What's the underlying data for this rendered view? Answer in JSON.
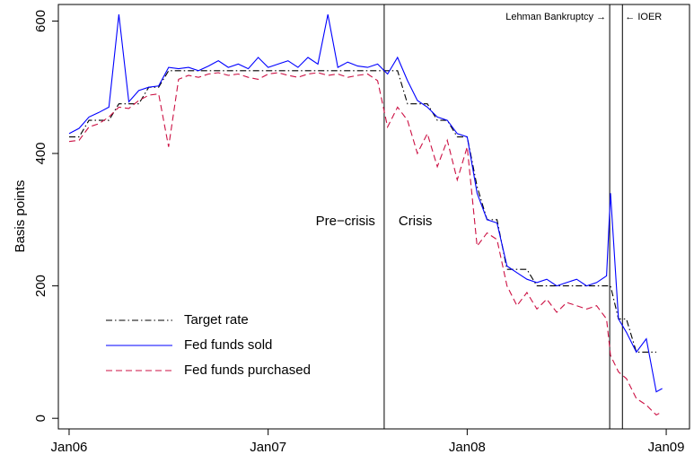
{
  "chart_data": {
    "type": "line",
    "y_label": "Basis points",
    "xlim": [
      2005.946,
      2009.117
    ],
    "ylim": [
      -16,
      625
    ],
    "xticks": [
      {
        "value": 2006,
        "label": "Jan06"
      },
      {
        "value": 2007,
        "label": "Jan07"
      },
      {
        "value": 2008,
        "label": "Jan08"
      },
      {
        "value": 2009,
        "label": "Jan09"
      }
    ],
    "yticks": [
      0,
      200,
      400,
      600
    ],
    "grid": false,
    "legend": "bottom-left",
    "x": [
      2006.0,
      2006.05,
      2006.1,
      2006.15,
      2006.2,
      2006.25,
      2006.3,
      2006.35,
      2006.4,
      2006.45,
      2006.5,
      2006.55,
      2006.6,
      2006.65,
      2006.7,
      2006.75,
      2006.8,
      2006.85,
      2006.9,
      2006.95,
      2007.0,
      2007.05,
      2007.1,
      2007.15,
      2007.2,
      2007.25,
      2007.3,
      2007.35,
      2007.4,
      2007.45,
      2007.5,
      2007.55,
      2007.6,
      2007.65,
      2007.7,
      2007.75,
      2007.8,
      2007.85,
      2007.9,
      2007.95,
      2008.0,
      2008.05,
      2008.1,
      2008.15,
      2008.2,
      2008.25,
      2008.3,
      2008.35,
      2008.4,
      2008.45,
      2008.5,
      2008.55,
      2008.6,
      2008.65,
      2008.7,
      2008.72,
      2008.76,
      2008.8,
      2008.85,
      2008.9,
      2008.95,
      2008.98
    ],
    "series": [
      {
        "name": "Target rate",
        "color": "#000000",
        "linestyle": "dashdot",
        "values": [
          425,
          425,
          450,
          450,
          450,
          475,
          475,
          475,
          500,
          500,
          525,
          525,
          525,
          525,
          525,
          525,
          525,
          525,
          525,
          525,
          525,
          525,
          525,
          525,
          525,
          525,
          525,
          525,
          525,
          525,
          525,
          525,
          525,
          525,
          475,
          475,
          475,
          450,
          450,
          425,
          425,
          350,
          300,
          300,
          225,
          225,
          225,
          200,
          200,
          200,
          200,
          200,
          200,
          200,
          200,
          200,
          150,
          150,
          100,
          100,
          100,
          null
        ]
      },
      {
        "name": "Fed funds sold",
        "color": "#0000ff",
        "linestyle": "solid",
        "values": [
          430,
          438,
          455,
          462,
          470,
          610,
          478,
          495,
          500,
          502,
          530,
          528,
          530,
          525,
          532,
          540,
          530,
          535,
          528,
          545,
          530,
          535,
          540,
          530,
          545,
          535,
          610,
          530,
          538,
          532,
          530,
          535,
          520,
          545,
          510,
          480,
          470,
          455,
          450,
          430,
          425,
          340,
          300,
          295,
          230,
          220,
          210,
          205,
          210,
          200,
          205,
          210,
          200,
          205,
          215,
          340,
          150,
          130,
          100,
          120,
          40,
          45
        ]
      },
      {
        "name": "Fed funds purchased",
        "color": "#cc1144",
        "linestyle": "dashed",
        "values": [
          418,
          420,
          440,
          445,
          455,
          470,
          468,
          480,
          488,
          490,
          410,
          512,
          518,
          515,
          520,
          522,
          518,
          520,
          515,
          512,
          520,
          522,
          518,
          515,
          520,
          522,
          518,
          520,
          515,
          518,
          520,
          510,
          440,
          470,
          450,
          400,
          430,
          380,
          420,
          360,
          410,
          260,
          280,
          270,
          200,
          170,
          190,
          165,
          180,
          160,
          175,
          170,
          165,
          170,
          150,
          95,
          70,
          60,
          30,
          20,
          5,
          10
        ]
      }
    ],
    "vlines": [
      2007.583,
      2008.716,
      2008.78
    ],
    "annotations": [
      "Pre−crisis",
      "Crisis",
      "Lehman Bankruptcy →",
      "← IOER"
    ]
  }
}
